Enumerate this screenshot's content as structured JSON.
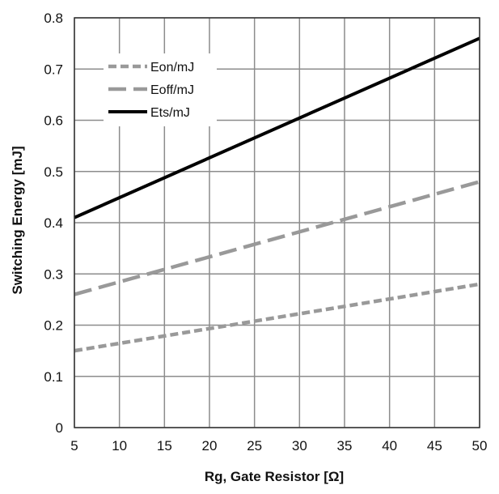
{
  "chart_data": {
    "type": "line",
    "title": "",
    "xlabel": "Rg, Gate Resistor [Ω]",
    "ylabel": "Switching Energy [mJ]",
    "xlim": [
      5,
      50
    ],
    "ylim": [
      0,
      0.8
    ],
    "x_ticks": [
      "5",
      "10",
      "15",
      "20",
      "25",
      "30",
      "35",
      "40",
      "45",
      "50"
    ],
    "y_ticks": [
      "0",
      "0.1",
      "0.2",
      "0.3",
      "0.4",
      "0.5",
      "0.6",
      "0.7",
      "0.8"
    ],
    "grid": true,
    "legend_position": "top-left",
    "series": [
      {
        "name": "Eon/mJ",
        "x": [
          5,
          50
        ],
        "y": [
          0.15,
          0.28
        ],
        "color": "#999999",
        "style": "short-dash"
      },
      {
        "name": "Eoff/mJ",
        "x": [
          5,
          50
        ],
        "y": [
          0.26,
          0.48
        ],
        "color": "#999999",
        "style": "long-dash"
      },
      {
        "name": "Ets/mJ",
        "x": [
          5,
          50
        ],
        "y": [
          0.41,
          0.76
        ],
        "color": "#000000",
        "style": "solid"
      }
    ]
  }
}
